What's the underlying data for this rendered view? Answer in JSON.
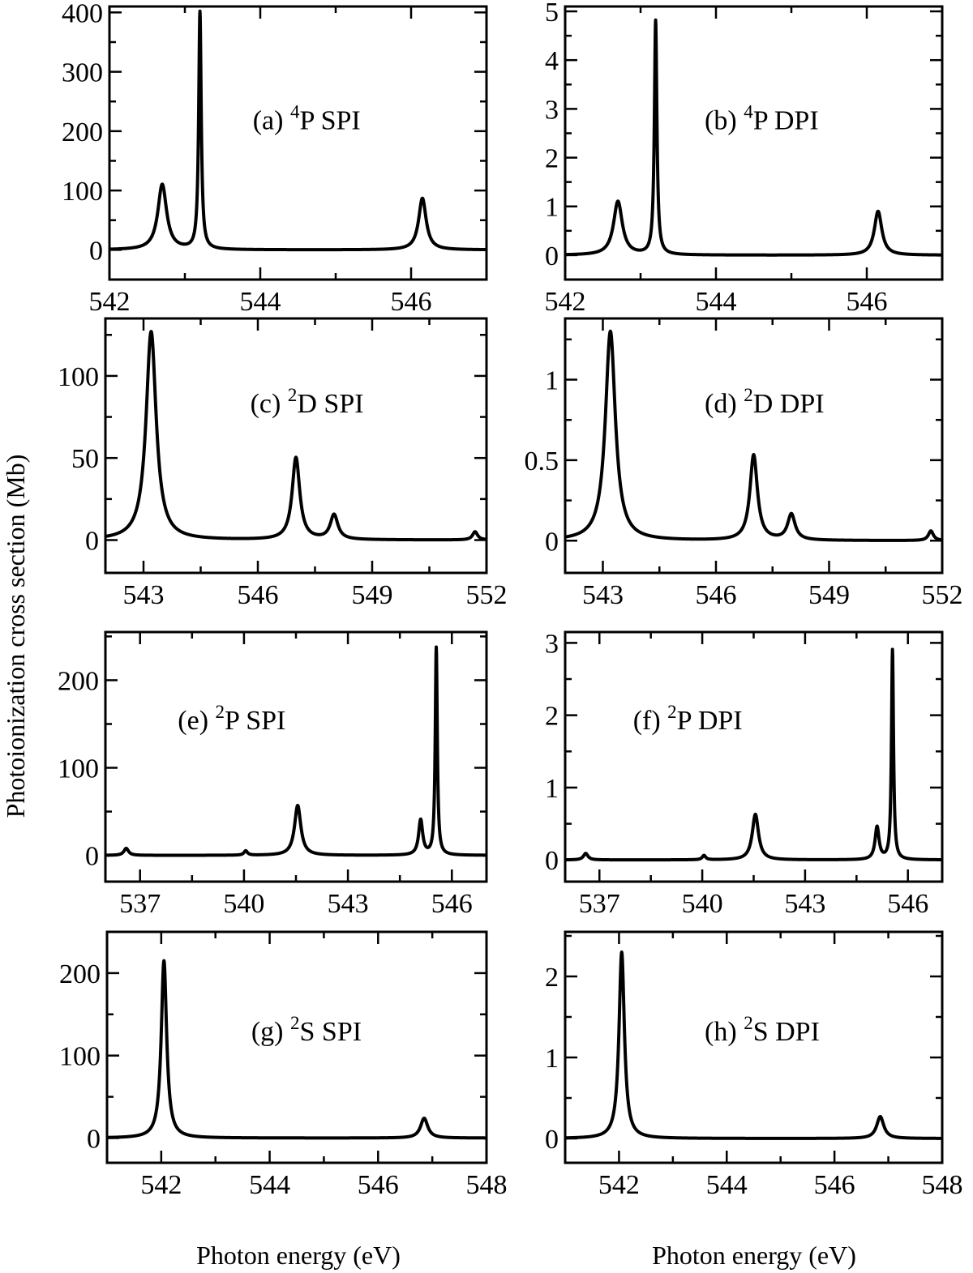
{
  "figure": {
    "xlabel": "Photon energy (eV)",
    "ylabel": "Photoionization cross section (Mb)"
  },
  "chart_data": [
    {
      "type": "line",
      "label_prefix": "(a)",
      "label_sup": "4",
      "label_sym": "P",
      "label_kind": "SPI",
      "xlim": [
        542,
        547
      ],
      "ylim": [
        -50,
        410
      ],
      "xticks": [
        542,
        544,
        546
      ],
      "xminor": [
        543,
        545,
        547
      ],
      "yticks": [
        0,
        100,
        200,
        300,
        400
      ],
      "yminor": [
        50,
        150,
        250,
        350
      ],
      "baseline": 0,
      "peaks": [
        {
          "x": 542.7,
          "y": 110,
          "w": 0.07
        },
        {
          "x": 543.2,
          "y": 400,
          "w": 0.02
        },
        {
          "x": 546.15,
          "y": 87,
          "w": 0.06
        }
      ]
    },
    {
      "type": "line",
      "label_prefix": "(b)",
      "label_sup": "4",
      "label_sym": "P",
      "label_kind": "DPI",
      "xlim": [
        542,
        547
      ],
      "ylim": [
        -0.5,
        5.1
      ],
      "xticks": [
        542,
        544,
        546
      ],
      "xminor": [
        543,
        545,
        547
      ],
      "yticks": [
        0,
        1,
        2,
        3,
        4,
        5
      ],
      "yminor": [
        0.5,
        1.5,
        2.5,
        3.5,
        4.5
      ],
      "baseline": 0,
      "peaks": [
        {
          "x": 542.7,
          "y": 1.1,
          "w": 0.07
        },
        {
          "x": 543.2,
          "y": 4.8,
          "w": 0.02
        },
        {
          "x": 546.15,
          "y": 0.9,
          "w": 0.06
        }
      ]
    },
    {
      "type": "line",
      "label_prefix": "(c)",
      "label_sup": "2",
      "label_sym": "D",
      "label_kind": "SPI",
      "xlim": [
        542,
        552
      ],
      "ylim": [
        -20,
        135
      ],
      "xticks": [
        543,
        546,
        549,
        552
      ],
      "xminor": [
        544.5,
        547.5,
        550.5
      ],
      "yticks": [
        0,
        50,
        100
      ],
      "yminor": [
        25,
        75,
        125
      ],
      "baseline": 0,
      "peaks": [
        {
          "x": 543.2,
          "y": 127,
          "w": 0.16
        },
        {
          "x": 547.0,
          "y": 50,
          "w": 0.12
        },
        {
          "x": 548.0,
          "y": 15,
          "w": 0.12
        },
        {
          "x": 551.7,
          "y": 5,
          "w": 0.08
        }
      ]
    },
    {
      "type": "line",
      "label_prefix": "(d)",
      "label_sup": "2",
      "label_sym": "D",
      "label_kind": "DPI",
      "xlim": [
        542,
        552
      ],
      "ylim": [
        -0.2,
        1.38
      ],
      "xticks": [
        543,
        546,
        549,
        552
      ],
      "xminor": [
        544.5,
        547.5,
        550.5
      ],
      "yticks": [
        0,
        0.5,
        1
      ],
      "yminor": [
        0.25,
        0.75,
        1.25
      ],
      "baseline": 0,
      "peaks": [
        {
          "x": 543.2,
          "y": 1.3,
          "w": 0.16
        },
        {
          "x": 547.0,
          "y": 0.53,
          "w": 0.12
        },
        {
          "x": 548.0,
          "y": 0.16,
          "w": 0.12
        },
        {
          "x": 551.7,
          "y": 0.06,
          "w": 0.08
        }
      ]
    },
    {
      "type": "line",
      "label_prefix": "(e)",
      "label_sup": "2",
      "label_sym": "P",
      "label_kind": "SPI",
      "xlim": [
        536,
        547
      ],
      "ylim": [
        -30,
        255
      ],
      "xticks": [
        537,
        540,
        543,
        546
      ],
      "xminor": [
        538.5,
        541.5,
        544.5
      ],
      "yticks": [
        0,
        100,
        200
      ],
      "yminor": [
        50,
        150,
        250
      ],
      "baseline": 0,
      "peaks": [
        {
          "x": 536.6,
          "y": 8,
          "w": 0.08
        },
        {
          "x": 540.05,
          "y": 5,
          "w": 0.06
        },
        {
          "x": 541.55,
          "y": 57,
          "w": 0.11
        },
        {
          "x": 545.1,
          "y": 40,
          "w": 0.07
        },
        {
          "x": 545.55,
          "y": 237,
          "w": 0.035
        }
      ]
    },
    {
      "type": "line",
      "label_prefix": "(f)",
      "label_sup": "2",
      "label_sym": "P",
      "label_kind": "DPI",
      "xlim": [
        536,
        547
      ],
      "ylim": [
        -0.3,
        3.15
      ],
      "xticks": [
        537,
        540,
        543,
        546
      ],
      "xminor": [
        538.5,
        541.5,
        544.5
      ],
      "yticks": [
        0,
        1,
        2,
        3
      ],
      "yminor": [
        0.5,
        1.5,
        2.5
      ],
      "baseline": 0,
      "peaks": [
        {
          "x": 536.6,
          "y": 0.09,
          "w": 0.08
        },
        {
          "x": 540.05,
          "y": 0.06,
          "w": 0.06
        },
        {
          "x": 541.55,
          "y": 0.63,
          "w": 0.11
        },
        {
          "x": 545.1,
          "y": 0.45,
          "w": 0.07
        },
        {
          "x": 545.55,
          "y": 2.9,
          "w": 0.035
        }
      ]
    },
    {
      "type": "line",
      "label_prefix": "(g)",
      "label_sup": "2",
      "label_sym": "S",
      "label_kind": "SPI",
      "xlim": [
        541,
        548
      ],
      "ylim": [
        -30,
        250
      ],
      "xticks": [
        542,
        544,
        546,
        548
      ],
      "xminor": [
        543,
        545,
        547
      ],
      "yticks": [
        0,
        100,
        200
      ],
      "yminor": [
        50,
        150,
        250
      ],
      "baseline": 0,
      "peaks": [
        {
          "x": 542.05,
          "y": 215,
          "w": 0.06
        },
        {
          "x": 546.85,
          "y": 24,
          "w": 0.08
        }
      ]
    },
    {
      "type": "line",
      "label_prefix": "(h)",
      "label_sup": "2",
      "label_sym": "S",
      "label_kind": "DPI",
      "xlim": [
        541,
        548
      ],
      "ylim": [
        -0.3,
        2.55
      ],
      "xticks": [
        542,
        544,
        546,
        548
      ],
      "xminor": [
        543,
        545,
        547
      ],
      "yticks": [
        0,
        1,
        2
      ],
      "yminor": [
        0.5,
        1.5,
        2.5
      ],
      "baseline": 0,
      "peaks": [
        {
          "x": 542.05,
          "y": 2.3,
          "w": 0.06
        },
        {
          "x": 546.85,
          "y": 0.27,
          "w": 0.08
        }
      ]
    }
  ]
}
